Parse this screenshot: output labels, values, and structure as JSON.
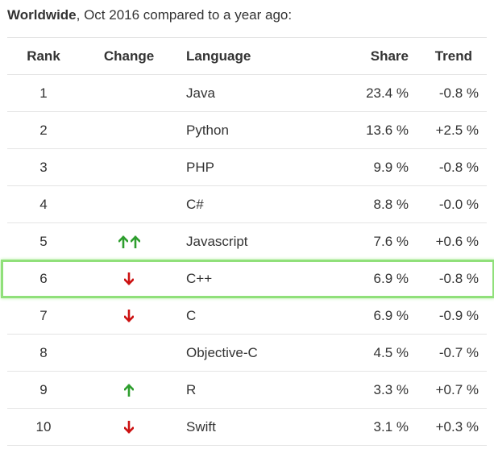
{
  "caption": {
    "region": "Worldwide",
    "rest": ", Oct 2016 compared to a year ago:"
  },
  "headers": {
    "rank": "Rank",
    "change": "Change",
    "language": "Language",
    "share": "Share",
    "trend": "Trend"
  },
  "rows": [
    {
      "rank": "1",
      "change": "none",
      "language": "Java",
      "share": "23.4 %",
      "trend": "-0.8 %"
    },
    {
      "rank": "2",
      "change": "none",
      "language": "Python",
      "share": "13.6 %",
      "trend": "+2.5 %"
    },
    {
      "rank": "3",
      "change": "none",
      "language": "PHP",
      "share": "9.9 %",
      "trend": "-0.8 %"
    },
    {
      "rank": "4",
      "change": "none",
      "language": "C#",
      "share": "8.8 %",
      "trend": "-0.0 %"
    },
    {
      "rank": "5",
      "change": "double-up",
      "language": "Javascript",
      "share": "7.6 %",
      "trend": "+0.6 %"
    },
    {
      "rank": "6",
      "change": "down",
      "language": "C++",
      "share": "6.9 %",
      "trend": "-0.8 %"
    },
    {
      "rank": "7",
      "change": "down",
      "language": "C",
      "share": "6.9 %",
      "trend": "-0.9 %"
    },
    {
      "rank": "8",
      "change": "none",
      "language": "Objective-C",
      "share": "4.5 %",
      "trend": "-0.7 %"
    },
    {
      "rank": "9",
      "change": "up",
      "language": "R",
      "share": "3.3 %",
      "trend": "+0.7 %"
    },
    {
      "rank": "10",
      "change": "down",
      "language": "Swift",
      "share": "3.1 %",
      "trend": "+0.3 %"
    }
  ],
  "highlighted_row": "6",
  "colors": {
    "up_arrow": "#2e9e2e",
    "down_arrow": "#cc1111",
    "highlight": "#90e07a"
  }
}
